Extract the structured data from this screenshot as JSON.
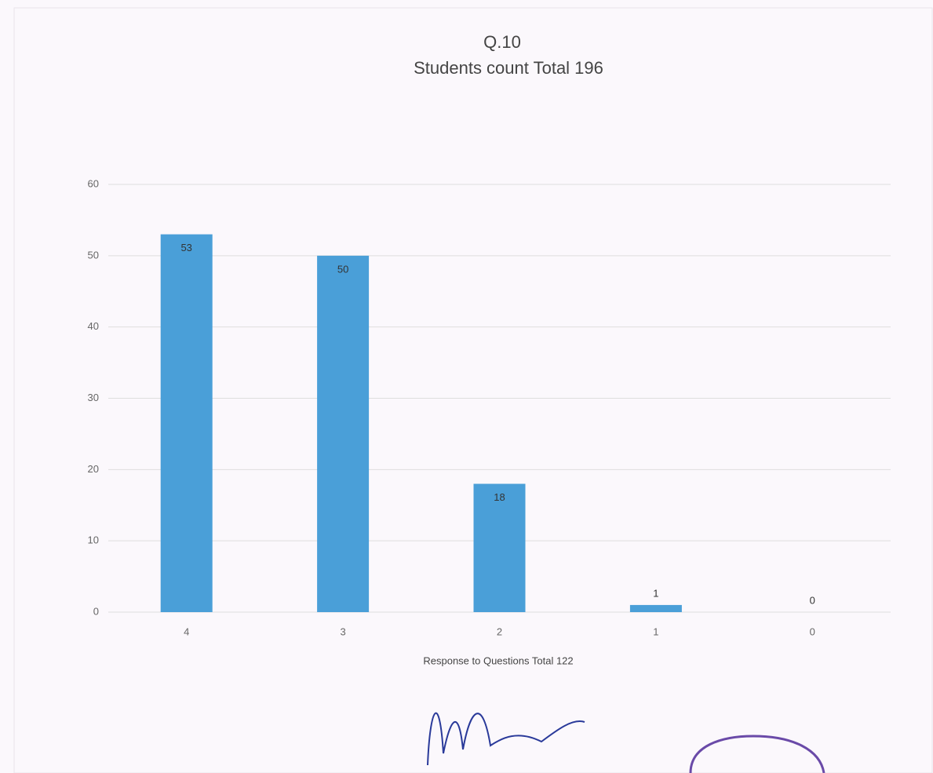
{
  "chart_data": {
    "type": "bar",
    "title": "Q.10",
    "subtitle": "Students count Total 196",
    "x_label": "Response to Questions Total 122",
    "categories": [
      "4",
      "3",
      "2",
      "1",
      "0"
    ],
    "values": [
      53,
      50,
      18,
      1,
      0
    ],
    "color": "#4a9fd8",
    "ylim": [
      0,
      60
    ],
    "yticks": [
      0,
      10,
      20,
      30,
      40,
      50,
      60
    ],
    "grid": true
  }
}
